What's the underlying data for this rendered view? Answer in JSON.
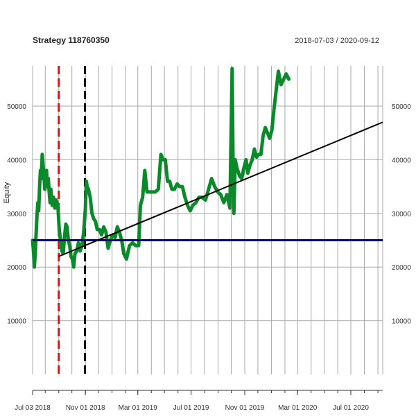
{
  "chart_data": {
    "type": "line",
    "title": "Strategy 118760350",
    "date_range": "2018-07-03 / 2020-09-12",
    "ylabel": "Equity",
    "xlabel": "",
    "x_start": "2018-07-03",
    "x_end": "2020-09-12",
    "ylim": [
      0,
      57500
    ],
    "grid": true,
    "x_ticks": [
      {
        "label": "Jul 03 2018",
        "date": "2018-07-03"
      },
      {
        "label": "Nov 01 2018",
        "date": "2018-11-01"
      },
      {
        "label": "Mar 01 2019",
        "date": "2019-03-01"
      },
      {
        "label": "Jul 01 2019",
        "date": "2019-07-01"
      },
      {
        "label": "Nov 01 2019",
        "date": "2019-11-01"
      },
      {
        "label": "Mar 01 2020",
        "date": "2020-03-01"
      },
      {
        "label": "Jul 01 2020",
        "date": "2020-07-01"
      }
    ],
    "y_ticks": [
      10000,
      20000,
      30000,
      40000,
      50000
    ],
    "series": [
      {
        "name": "",
        "color": "#0a8a2a",
        "points": [
          [
            "2018-07-03",
            25000
          ],
          [
            "2018-07-05",
            23000
          ],
          [
            "2018-07-07",
            20000
          ],
          [
            "2018-07-09",
            22500
          ],
          [
            "2018-07-11",
            26000
          ],
          [
            "2018-07-13",
            29500
          ],
          [
            "2018-07-15",
            32000
          ],
          [
            "2018-07-17",
            30500
          ],
          [
            "2018-07-19",
            35000
          ],
          [
            "2018-07-21",
            38000
          ],
          [
            "2018-07-23",
            36500
          ],
          [
            "2018-07-25",
            41000
          ],
          [
            "2018-07-27",
            39000
          ],
          [
            "2018-07-29",
            37000
          ],
          [
            "2018-07-31",
            34500
          ],
          [
            "2018-08-02",
            36000
          ],
          [
            "2018-08-04",
            38000
          ],
          [
            "2018-08-06",
            35000
          ],
          [
            "2018-08-08",
            36500
          ],
          [
            "2018-08-10",
            34000
          ],
          [
            "2018-08-12",
            32000
          ],
          [
            "2018-08-14",
            34500
          ],
          [
            "2018-08-17",
            31500
          ],
          [
            "2018-08-20",
            33000
          ],
          [
            "2018-08-23",
            31000
          ],
          [
            "2018-08-26",
            32500
          ],
          [
            "2018-08-30",
            31500
          ],
          [
            "2018-09-02",
            27000
          ],
          [
            "2018-09-05",
            25000
          ],
          [
            "2018-09-08",
            23000
          ],
          [
            "2018-09-11",
            22500
          ],
          [
            "2018-09-14",
            25500
          ],
          [
            "2018-09-17",
            28000
          ],
          [
            "2018-09-20",
            27500
          ],
          [
            "2018-09-23",
            25000
          ],
          [
            "2018-09-26",
            24000
          ],
          [
            "2018-09-29",
            22000
          ],
          [
            "2018-10-02",
            21500
          ],
          [
            "2018-10-05",
            20000
          ],
          [
            "2018-10-08",
            22500
          ],
          [
            "2018-10-12",
            23000
          ],
          [
            "2018-10-16",
            24500
          ],
          [
            "2018-10-20",
            23000
          ],
          [
            "2018-10-24",
            24000
          ],
          [
            "2018-10-28",
            26500
          ],
          [
            "2018-11-01",
            31000
          ],
          [
            "2018-11-03",
            36000
          ],
          [
            "2018-11-05",
            35000
          ],
          [
            "2018-11-08",
            34500
          ],
          [
            "2018-11-12",
            33000
          ],
          [
            "2018-11-16",
            30000
          ],
          [
            "2018-11-20",
            29000
          ],
          [
            "2018-11-24",
            28500
          ],
          [
            "2018-11-28",
            27000
          ],
          [
            "2018-12-03",
            27000
          ],
          [
            "2018-12-08",
            26000
          ],
          [
            "2018-12-13",
            27500
          ],
          [
            "2018-12-18",
            26500
          ],
          [
            "2018-12-23",
            23500
          ],
          [
            "2018-12-28",
            25000
          ],
          [
            "2019-01-03",
            26000
          ],
          [
            "2019-01-08",
            25500
          ],
          [
            "2019-01-13",
            27500
          ],
          [
            "2019-01-18",
            26500
          ],
          [
            "2019-01-23",
            25000
          ],
          [
            "2019-01-28",
            22500
          ],
          [
            "2019-02-03",
            21500
          ],
          [
            "2019-02-10",
            24000
          ],
          [
            "2019-02-17",
            24500
          ],
          [
            "2019-02-24",
            24000
          ],
          [
            "2019-03-03",
            24000
          ],
          [
            "2019-03-07",
            31500
          ],
          [
            "2019-03-12",
            33000
          ],
          [
            "2019-03-17",
            38000
          ],
          [
            "2019-03-22",
            34000
          ],
          [
            "2019-03-27",
            34000
          ],
          [
            "2019-04-03",
            34000
          ],
          [
            "2019-04-10",
            34000
          ],
          [
            "2019-04-17",
            34500
          ],
          [
            "2019-04-23",
            41000
          ],
          [
            "2019-04-28",
            40000
          ],
          [
            "2019-05-03",
            40000
          ],
          [
            "2019-05-08",
            36000
          ],
          [
            "2019-05-13",
            36000
          ],
          [
            "2019-05-18",
            34500
          ],
          [
            "2019-05-24",
            34500
          ],
          [
            "2019-05-30",
            35500
          ],
          [
            "2019-06-05",
            35000
          ],
          [
            "2019-06-11",
            35000
          ],
          [
            "2019-06-17",
            33000
          ],
          [
            "2019-06-23",
            31500
          ],
          [
            "2019-06-29",
            30500
          ],
          [
            "2019-07-05",
            31500
          ],
          [
            "2019-07-12",
            32000
          ],
          [
            "2019-07-19",
            33000
          ],
          [
            "2019-07-26",
            33000
          ],
          [
            "2019-08-03",
            32500
          ],
          [
            "2019-08-10",
            34500
          ],
          [
            "2019-08-17",
            36500
          ],
          [
            "2019-08-24",
            35000
          ],
          [
            "2019-08-31",
            34000
          ],
          [
            "2019-09-07",
            33500
          ],
          [
            "2019-09-14",
            32000
          ],
          [
            "2019-09-21",
            33500
          ],
          [
            "2019-09-28",
            31000
          ],
          [
            "2019-10-03",
            57000
          ],
          [
            "2019-10-05",
            41000
          ],
          [
            "2019-10-07",
            30000
          ],
          [
            "2019-10-10",
            40000
          ],
          [
            "2019-10-14",
            38500
          ],
          [
            "2019-10-20",
            37000
          ],
          [
            "2019-10-25",
            36500
          ],
          [
            "2019-10-30",
            38500
          ],
          [
            "2019-11-04",
            40000
          ],
          [
            "2019-11-08",
            37500
          ],
          [
            "2019-11-13",
            39000
          ],
          [
            "2019-11-18",
            40000
          ],
          [
            "2019-11-23",
            42000
          ],
          [
            "2019-11-28",
            40500
          ],
          [
            "2019-12-03",
            41000
          ],
          [
            "2019-12-08",
            41000
          ],
          [
            "2019-12-13",
            44500
          ],
          [
            "2019-12-18",
            46000
          ],
          [
            "2019-12-23",
            45000
          ],
          [
            "2019-12-28",
            44000
          ],
          [
            "2020-01-02",
            45500
          ],
          [
            "2020-01-07",
            49500
          ],
          [
            "2020-01-12",
            53000
          ],
          [
            "2020-01-17",
            56500
          ],
          [
            "2020-01-23",
            54000
          ],
          [
            "2020-01-29",
            55000
          ],
          [
            "2020-02-04",
            56000
          ],
          [
            "2020-02-10",
            55000
          ]
        ]
      }
    ],
    "reference_lines": [
      {
        "kind": "horizontal",
        "value": 25000,
        "color": "#000080",
        "style": "solid"
      },
      {
        "kind": "vertical",
        "date": "2018-09-01",
        "color": "#dd1111",
        "style": "dashed"
      },
      {
        "kind": "vertical",
        "date": "2018-10-31",
        "color": "#000000",
        "style": "dashed"
      },
      {
        "kind": "trend",
        "from": [
          "2018-09-01",
          22000
        ],
        "to": [
          "2020-09-12",
          47000
        ],
        "color": "#000000",
        "style": "solid"
      }
    ]
  }
}
